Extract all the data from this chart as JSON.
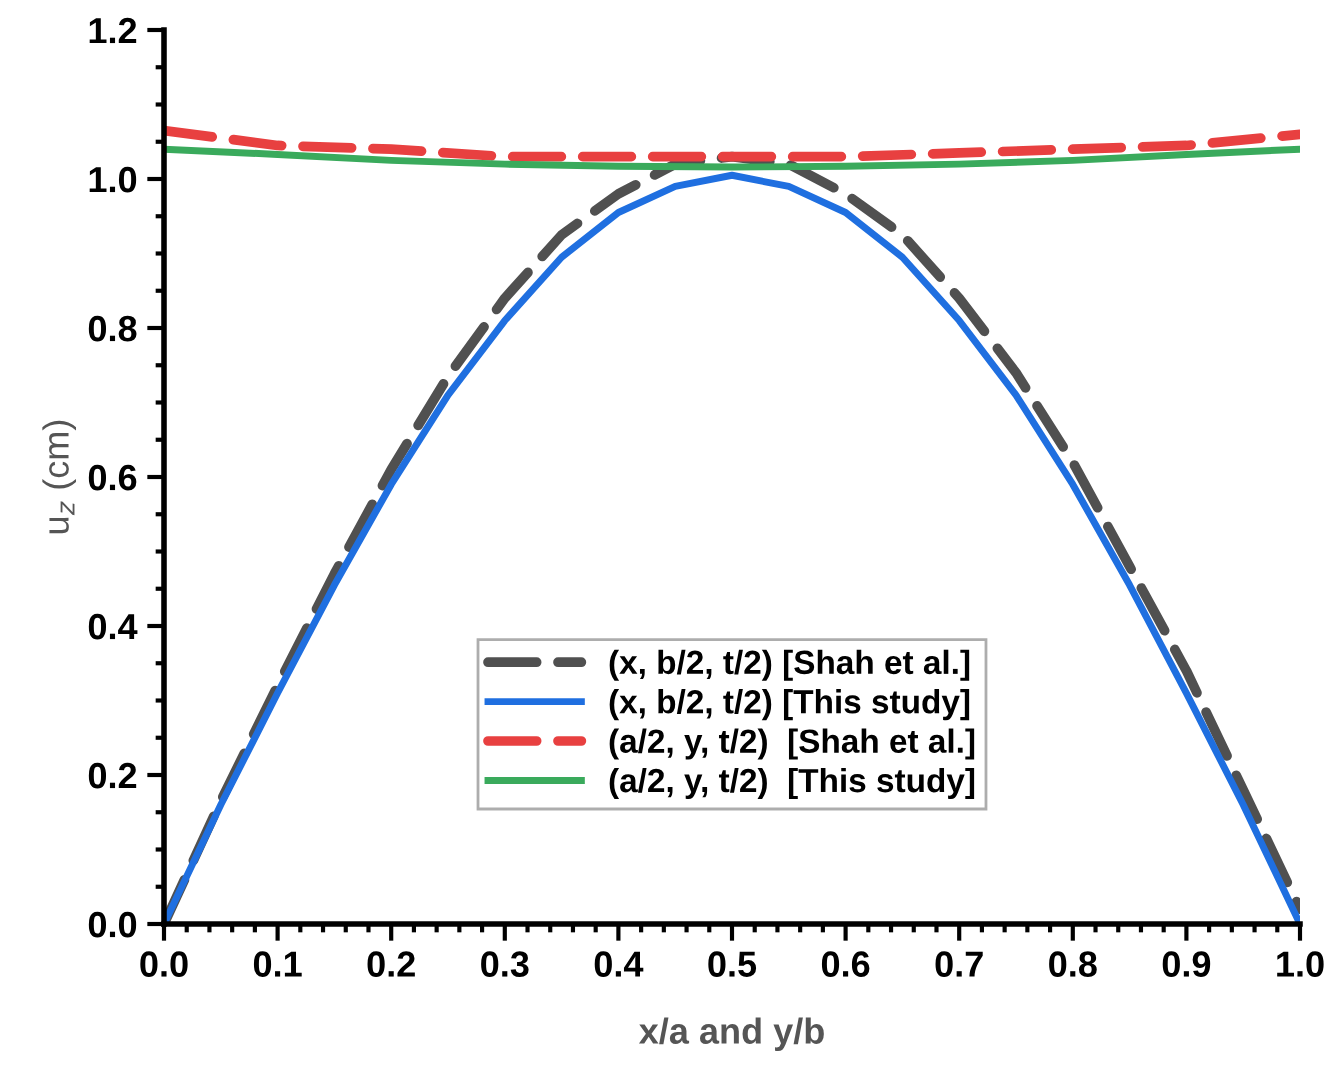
{
  "chart_data": {
    "type": "line",
    "xlabel": "x/a and y/b",
    "ylabel": "u$_{z}$ (cm)",
    "xlim": [
      0,
      1
    ],
    "ylim": [
      0,
      1.2
    ],
    "xticks": [
      {
        "value": 0,
        "label": "0.0"
      },
      0.1,
      0.2,
      0.3,
      0.4,
      0.5,
      0.6,
      0.7,
      0.8,
      0.9,
      {
        "value": 1,
        "label": "1.0"
      }
    ],
    "yticks": [
      {
        "value": 0,
        "label": "0.0"
      },
      0.2,
      0.4,
      0.6,
      0.8,
      {
        "value": 1,
        "label": "1.0"
      },
      1.2
    ],
    "grid": false,
    "legend": "bottom",
    "series": [
      {
        "name": "(x, b/2, t/2) [Shah et al.]",
        "color": "#505050",
        "line_style": "dashed",
        "x": [
          0,
          0.05,
          0.1,
          0.15,
          0.2,
          0.25,
          0.3,
          0.35,
          0.4,
          0.45,
          0.5,
          0.55,
          0.6,
          0.65,
          0.7,
          0.75,
          0.8,
          0.85,
          0.9,
          0.95,
          1.0
        ],
        "values": [
          0,
          0.165,
          0.32,
          0.47,
          0.61,
          0.735,
          0.84,
          0.925,
          0.98,
          1.02,
          1.03,
          1.02,
          0.98,
          0.925,
          0.84,
          0.74,
          0.62,
          0.48,
          0.34,
          0.18,
          0.02
        ]
      },
      {
        "name": "(x, b/2, t/2) [This study]",
        "color": "#1f6fe0",
        "line_style": "solid",
        "x": [
          0,
          0.05,
          0.1,
          0.15,
          0.2,
          0.25,
          0.3,
          0.35,
          0.4,
          0.45,
          0.5,
          0.55,
          0.6,
          0.65,
          0.7,
          0.75,
          0.8,
          0.85,
          0.9,
          0.95,
          1.0
        ],
        "values": [
          0,
          0.16,
          0.31,
          0.455,
          0.59,
          0.71,
          0.81,
          0.895,
          0.955,
          0.99,
          1.005,
          0.99,
          0.955,
          0.895,
          0.81,
          0.71,
          0.59,
          0.455,
          0.31,
          0.16,
          0
        ]
      },
      {
        "name": "(a/2, y, t/2)  [Shah et al.]",
        "color": "#e84040",
        "line_style": "dashed",
        "x": [
          0,
          0.1,
          0.2,
          0.3,
          0.4,
          0.5,
          0.6,
          0.7,
          0.8,
          0.9,
          1.0
        ],
        "values": [
          1.065,
          1.045,
          1.04,
          1.03,
          1.03,
          1.03,
          1.03,
          1.035,
          1.04,
          1.045,
          1.06
        ]
      },
      {
        "name": "(a/2, y, t/2)  [This study]",
        "color": "#3aaa5c",
        "line_style": "solid",
        "x": [
          0,
          0.1,
          0.2,
          0.3,
          0.4,
          0.5,
          0.6,
          0.7,
          0.8,
          0.9,
          1.0
        ],
        "values": [
          1.04,
          1.033,
          1.025,
          1.02,
          1.017,
          1.016,
          1.017,
          1.02,
          1.025,
          1.033,
          1.04
        ]
      }
    ]
  }
}
